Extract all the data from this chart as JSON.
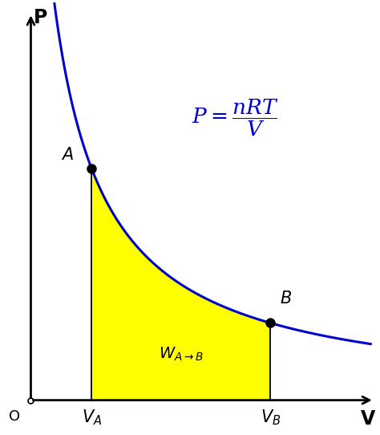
{
  "curve_color": "#0000CC",
  "fill_color": "#FFFF00",
  "point_color": "#000000",
  "background_color": "#FFFFFF",
  "VA": 2.5,
  "VB": 7.5,
  "k": 16.0,
  "x_min": 0.0,
  "x_max": 10.5,
  "y_min": -0.8,
  "y_max": 11.0,
  "origin_x": 0.8,
  "origin_y": 0.0,
  "label_P": "$\\mathbf{P}$",
  "label_V": "$\\mathbf{V}$",
  "label_A": "$A$",
  "label_B": "$B$",
  "label_VA": "$V_A$",
  "label_VB": "$V_B$",
  "label_O": "O",
  "label_W": "$W_{A\\rightarrow B}$",
  "formula": "$P=\\dfrac{nRT}{V}$",
  "axis_lw": 2.0,
  "curve_lw": 2.2,
  "annotation_fontsize": 15,
  "formula_fontsize": 19,
  "axis_label_fontsize": 17,
  "tick_label_fontsize": 15
}
